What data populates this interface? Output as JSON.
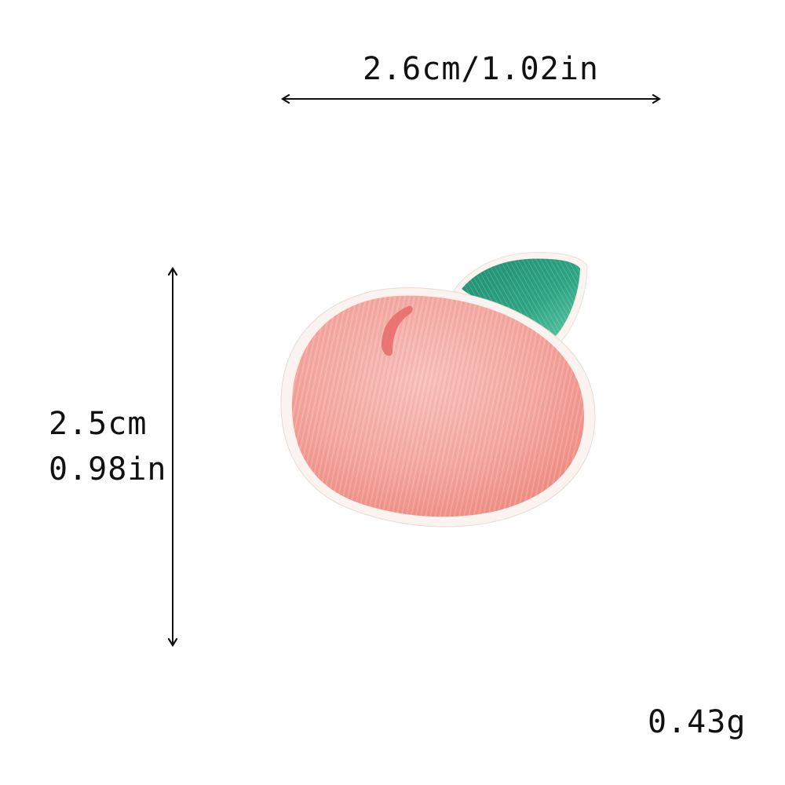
{
  "dimensions": {
    "width_label": "2.6cm/1.02in",
    "height_cm_label": "2.5cm",
    "height_in_label": "0.98in",
    "weight_label": "0.43g"
  },
  "product": {
    "subject": "peach-embroidered-patch-icon",
    "colors": {
      "peach": "#f4a9a4",
      "peach_shadow": "#ee8d84",
      "leaf": "#2e9a7e",
      "leaf_light": "#49b997",
      "border": "#fbf4f0",
      "arrow": "#111111"
    }
  }
}
